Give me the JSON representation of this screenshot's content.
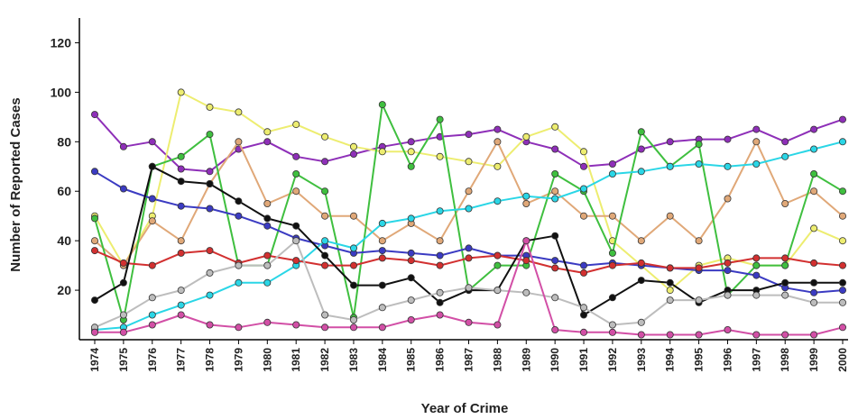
{
  "chart_data": {
    "type": "line",
    "xlabel": "Year of Crime",
    "ylabel": "Number of Reported Cases",
    "ylim": [
      0,
      130
    ],
    "yticks": [
      20,
      40,
      60,
      80,
      100,
      120
    ],
    "x": [
      1974,
      1975,
      1976,
      1977,
      1978,
      1979,
      1980,
      1981,
      1982,
      1983,
      1984,
      1985,
      1986,
      1987,
      1988,
      1989,
      1990,
      1991,
      1992,
      1993,
      1994,
      1995,
      1996,
      1997,
      1998,
      1999,
      2000
    ],
    "x_tick_labels": [
      "1974",
      "1975",
      "1976",
      "1977",
      "1978",
      "1979",
      "1980",
      "1981",
      "1982",
      "1983",
      "1984",
      "1985",
      "1986",
      "1987",
      "1988",
      "1989",
      "1990",
      "1991",
      "1992",
      "1993",
      "1994",
      "1995",
      "1996",
      "1997",
      "1998",
      "1999",
      "2000"
    ],
    "grid": false,
    "legend": "none",
    "series": [
      {
        "color": "#8e2fb8",
        "values": [
          91,
          78,
          80,
          69,
          68,
          77,
          80,
          74,
          72,
          75,
          78,
          80,
          82,
          83,
          85,
          80,
          77,
          70,
          71,
          77,
          80,
          81,
          81,
          85,
          80,
          85,
          89
        ]
      },
      {
        "color": "#eded70",
        "values": [
          50,
          30,
          50,
          100,
          94,
          92,
          84,
          87,
          82,
          78,
          76,
          76,
          74,
          72,
          70,
          82,
          86,
          76,
          40,
          30,
          20,
          30,
          33,
          30,
          30,
          45,
          40
        ]
      },
      {
        "color": "#e0a878",
        "values": [
          40,
          30,
          48,
          40,
          63,
          80,
          55,
          60,
          50,
          50,
          40,
          47,
          40,
          60,
          80,
          55,
          60,
          50,
          50,
          40,
          50,
          40,
          57,
          80,
          55,
          60,
          50
        ]
      },
      {
        "color": "#3fbf3f",
        "values": [
          49,
          8,
          70,
          74,
          83,
          30,
          30,
          67,
          60,
          9,
          95,
          70,
          89,
          20,
          30,
          30,
          67,
          60,
          35,
          84,
          70,
          79,
          18,
          30,
          30,
          67,
          60
        ]
      },
      {
        "color": "#3b3bc2",
        "values": [
          68,
          61,
          57,
          54,
          53,
          50,
          46,
          41,
          38,
          35,
          36,
          35,
          34,
          37,
          34,
          34,
          32,
          30,
          31,
          30,
          29,
          28,
          28,
          26,
          21,
          19,
          20
        ]
      },
      {
        "color": "#2ad6e6",
        "values": [
          4,
          5,
          10,
          14,
          18,
          23,
          23,
          30,
          40,
          37,
          47,
          49,
          52,
          53,
          56,
          58,
          57,
          61,
          67,
          68,
          70,
          71,
          70,
          71,
          74,
          77,
          80
        ]
      },
      {
        "color": "#d23030",
        "values": [
          36,
          31,
          30,
          35,
          36,
          31,
          34,
          32,
          30,
          30,
          33,
          32,
          30,
          33,
          34,
          32,
          29,
          27,
          30,
          31,
          29,
          29,
          31,
          33,
          33,
          31,
          30
        ]
      },
      {
        "color": "#111111",
        "values": [
          16,
          23,
          70,
          64,
          63,
          56,
          49,
          46,
          34,
          22,
          22,
          25,
          15,
          20,
          20,
          40,
          42,
          10,
          17,
          24,
          23,
          15,
          20,
          20,
          23,
          23,
          23
        ]
      },
      {
        "color": "#bdbdbd",
        "values": [
          5,
          10,
          17,
          20,
          27,
          30,
          30,
          40,
          10,
          8,
          13,
          16,
          19,
          21,
          20,
          19,
          17,
          13,
          6,
          7,
          16,
          16,
          18,
          18,
          18,
          15,
          15
        ]
      },
      {
        "color": "#d24fa6",
        "values": [
          3,
          3,
          6,
          10,
          6,
          5,
          7,
          6,
          5,
          5,
          5,
          8,
          10,
          7,
          6,
          40,
          4,
          3,
          3,
          2,
          2,
          2,
          4,
          2,
          2,
          2,
          5
        ]
      }
    ]
  }
}
